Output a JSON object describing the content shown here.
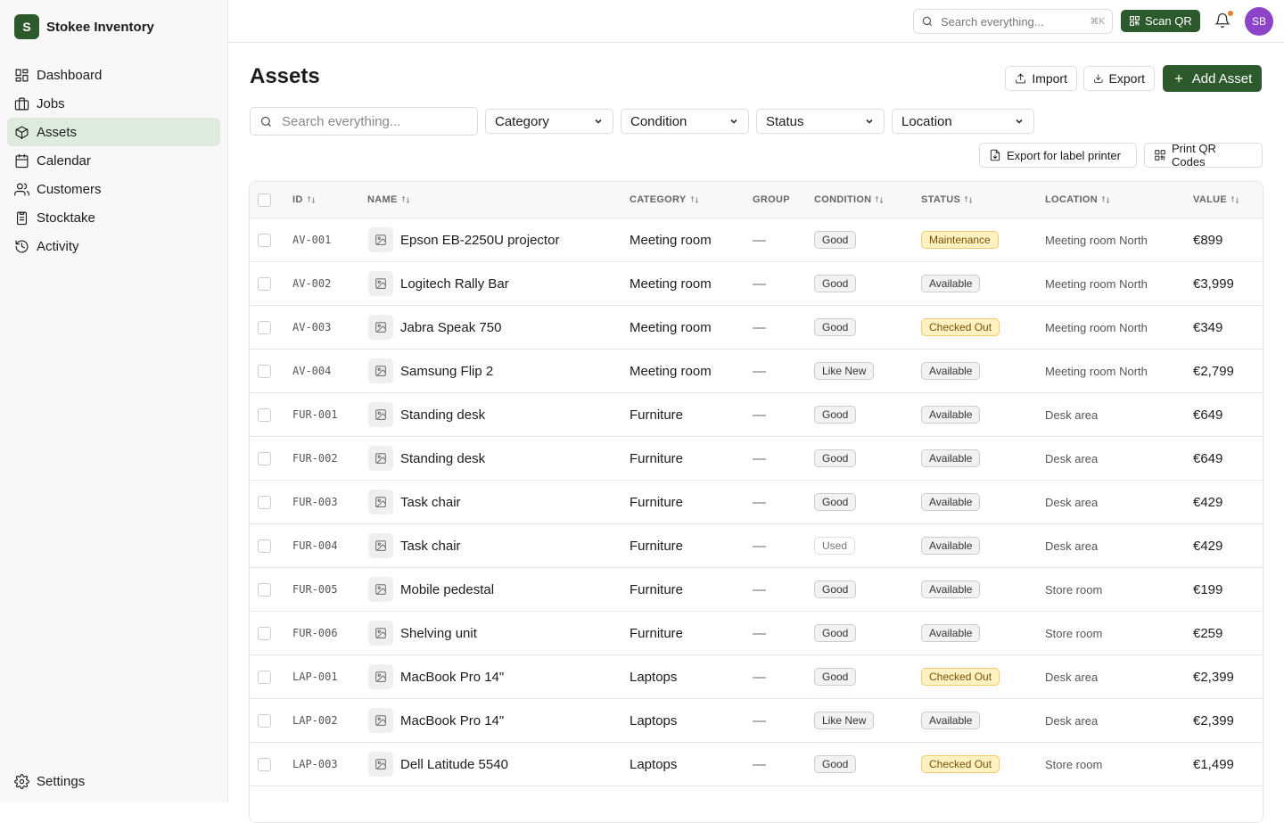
{
  "app": {
    "logo_letter": "S",
    "name": "Stokee Inventory"
  },
  "nav": [
    {
      "label": "Dashboard",
      "icon": "dashboard-icon"
    },
    {
      "label": "Jobs",
      "icon": "briefcase-icon"
    },
    {
      "label": "Assets",
      "icon": "box-icon",
      "active": true
    },
    {
      "label": "Calendar",
      "icon": "calendar-icon"
    },
    {
      "label": "Customers",
      "icon": "users-icon"
    },
    {
      "label": "Stocktake",
      "icon": "clipboard-icon"
    },
    {
      "label": "Activity",
      "icon": "history-icon"
    }
  ],
  "settings_label": "Settings",
  "topbar": {
    "search_placeholder": "Search everything...",
    "shortcut": "⌘K",
    "scan_label": "Scan QR",
    "avatar": "SB"
  },
  "page": {
    "title": "Assets",
    "import_label": "Import",
    "export_label": "Export",
    "add_label": "Add Asset"
  },
  "filters": {
    "search_placeholder": "Search everything...",
    "category": "Category",
    "condition": "Condition",
    "status": "Status",
    "location": "Location"
  },
  "actions": {
    "label_printer": "Export for label printer",
    "qr_codes": "Print QR Codes"
  },
  "columns": [
    "ID",
    "NAME",
    "CATEGORY",
    "GROUP",
    "CONDITION",
    "STATUS",
    "LOCATION",
    "VALUE"
  ],
  "rows": [
    {
      "id": "AV-001",
      "name": "Epson EB-2250U projector",
      "category": "Meeting room",
      "group": "—",
      "condition": "Good",
      "status": "Maintenance",
      "location": "Meeting room North",
      "value": "€899"
    },
    {
      "id": "AV-002",
      "name": "Logitech Rally Bar",
      "category": "Meeting room",
      "group": "—",
      "condition": "Good",
      "status": "Available",
      "location": "Meeting room North",
      "value": "€3,999"
    },
    {
      "id": "AV-003",
      "name": "Jabra Speak 750",
      "category": "Meeting room",
      "group": "—",
      "condition": "Good",
      "status": "Checked Out",
      "location": "Meeting room North",
      "value": "€349"
    },
    {
      "id": "AV-004",
      "name": "Samsung Flip 2",
      "category": "Meeting room",
      "group": "—",
      "condition": "Like New",
      "status": "Available",
      "location": "Meeting room North",
      "value": "€2,799"
    },
    {
      "id": "FUR-001",
      "name": "Standing desk",
      "category": "Furniture",
      "group": "—",
      "condition": "Good",
      "status": "Available",
      "location": "Desk area",
      "value": "€649"
    },
    {
      "id": "FUR-002",
      "name": "Standing desk",
      "category": "Furniture",
      "group": "—",
      "condition": "Good",
      "status": "Available",
      "location": "Desk area",
      "value": "€649"
    },
    {
      "id": "FUR-003",
      "name": "Task chair",
      "category": "Furniture",
      "group": "—",
      "condition": "Good",
      "status": "Available",
      "location": "Desk area",
      "value": "€429"
    },
    {
      "id": "FUR-004",
      "name": "Task chair",
      "category": "Furniture",
      "group": "—",
      "condition": "Used",
      "status": "Available",
      "location": "Desk area",
      "value": "€429"
    },
    {
      "id": "FUR-005",
      "name": "Mobile pedestal",
      "category": "Furniture",
      "group": "—",
      "condition": "Good",
      "status": "Available",
      "location": "Store room",
      "value": "€199"
    },
    {
      "id": "FUR-006",
      "name": "Shelving unit",
      "category": "Furniture",
      "group": "—",
      "condition": "Good",
      "status": "Available",
      "location": "Store room",
      "value": "€259"
    },
    {
      "id": "LAP-001",
      "name": "MacBook Pro 14\"",
      "category": "Laptops",
      "group": "—",
      "condition": "Good",
      "status": "Checked Out",
      "location": "Desk area",
      "value": "€2,399"
    },
    {
      "id": "LAP-002",
      "name": "MacBook Pro 14\"",
      "category": "Laptops",
      "group": "—",
      "condition": "Like New",
      "status": "Available",
      "location": "Desk area",
      "value": "€2,399"
    },
    {
      "id": "LAP-003",
      "name": "Dell Latitude 5540",
      "category": "Laptops",
      "group": "—",
      "condition": "Good",
      "status": "Checked Out",
      "location": "Store room",
      "value": "€1,499"
    }
  ],
  "colors": {
    "brand": "#2d5a2d",
    "active_nav": "#dcebdc",
    "warning_badge": "#fff1c2",
    "avatar": "#8e44c6"
  }
}
